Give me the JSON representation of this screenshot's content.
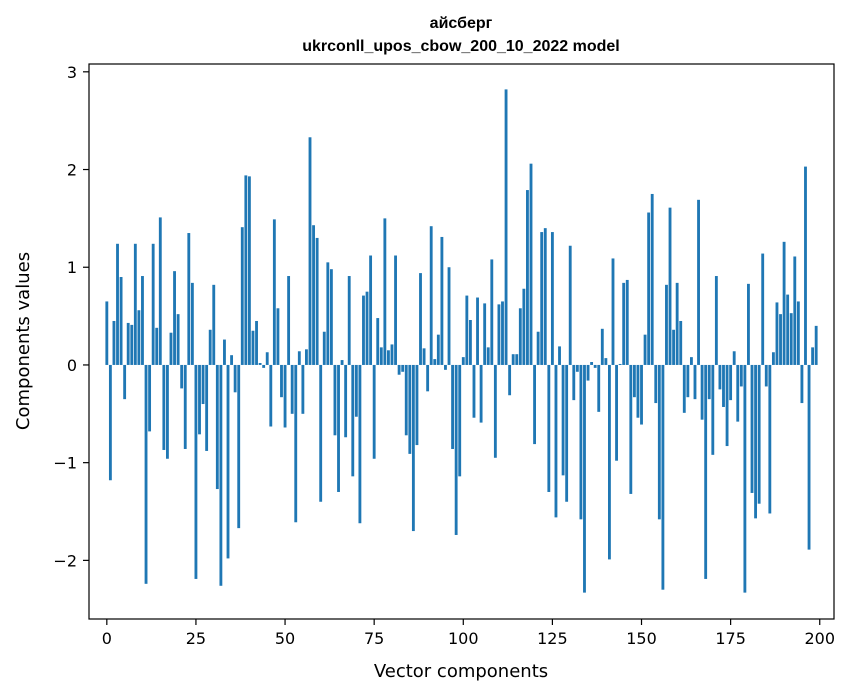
{
  "chart_data": {
    "type": "bar",
    "title": "айсберг",
    "subtitle": "ukrconll_upos_cbow_200_10_2022 model",
    "xlabel": "Vector components",
    "ylabel": "Components values",
    "xlim": [
      -5,
      204
    ],
    "ylim": [
      -2.6,
      3.08
    ],
    "xticks": [
      0,
      25,
      50,
      75,
      100,
      125,
      150,
      175,
      200
    ],
    "yticks": [
      -2,
      -1,
      0,
      1,
      2,
      3
    ],
    "bar_color": "#1f77b4",
    "grid": false,
    "legend": "none",
    "values": [
      0.65,
      -1.18,
      0.45,
      1.24,
      0.9,
      -0.35,
      0.43,
      0.41,
      1.24,
      0.56,
      0.91,
      -2.24,
      -0.68,
      1.24,
      0.38,
      1.51,
      -0.87,
      -0.96,
      0.33,
      0.96,
      0.52,
      -0.24,
      -0.86,
      1.35,
      0.84,
      -2.19,
      -0.71,
      -0.4,
      -0.88,
      0.36,
      0.82,
      -1.27,
      -2.26,
      0.26,
      -1.98,
      0.1,
      -0.28,
      -1.67,
      1.41,
      1.94,
      1.93,
      0.35,
      0.45,
      0.02,
      -0.03,
      0.13,
      -0.63,
      1.49,
      0.58,
      -0.33,
      -0.64,
      0.91,
      -0.5,
      -1.61,
      0.14,
      -0.5,
      0.16,
      2.33,
      1.43,
      1.3,
      -1.4,
      0.34,
      1.05,
      0.98,
      -0.72,
      -1.3,
      0.05,
      -0.74,
      0.91,
      -1.14,
      -0.53,
      -1.62,
      0.71,
      0.75,
      1.12,
      -0.96,
      0.48,
      0.18,
      1.5,
      0.15,
      0.21,
      1.12,
      -0.1,
      -0.07,
      -0.72,
      -0.91,
      -1.7,
      -0.82,
      0.94,
      0.17,
      -0.27,
      1.42,
      0.06,
      0.31,
      1.31,
      -0.05,
      1.0,
      -0.86,
      -1.74,
      -1.14,
      0.08,
      0.71,
      0.46,
      -0.54,
      0.69,
      -0.59,
      0.63,
      0.18,
      1.08,
      -0.95,
      0.62,
      0.65,
      2.82,
      -0.31,
      0.11,
      0.11,
      0.58,
      0.78,
      1.79,
      2.06,
      -0.81,
      0.34,
      1.36,
      1.4,
      -1.3,
      1.36,
      -1.56,
      0.19,
      -1.13,
      -1.4,
      1.22,
      -0.36,
      -0.07,
      -1.58,
      -2.33,
      -0.16,
      0.03,
      -0.03,
      -0.48,
      0.37,
      0.07,
      -1.99,
      1.09,
      -0.98,
      0.01,
      0.84,
      0.87,
      -1.32,
      -0.33,
      -0.54,
      -0.61,
      0.31,
      1.56,
      1.75,
      -0.39,
      -1.58,
      -2.3,
      0.82,
      1.61,
      0.36,
      0.84,
      0.45,
      -0.49,
      -0.33,
      0.08,
      -0.35,
      1.69,
      -0.56,
      -2.19,
      -0.35,
      -0.92,
      0.91,
      -0.25,
      -0.43,
      -0.83,
      -0.36,
      0.14,
      -0.58,
      -0.22,
      -2.33,
      0.83,
      -1.31,
      -1.57,
      -1.42,
      1.14,
      -0.22,
      -1.52,
      0.13,
      0.64,
      0.52,
      1.26,
      0.72,
      0.53,
      1.11,
      0.65,
      -0.39,
      2.03,
      -1.89,
      0.18,
      0.4
    ]
  }
}
